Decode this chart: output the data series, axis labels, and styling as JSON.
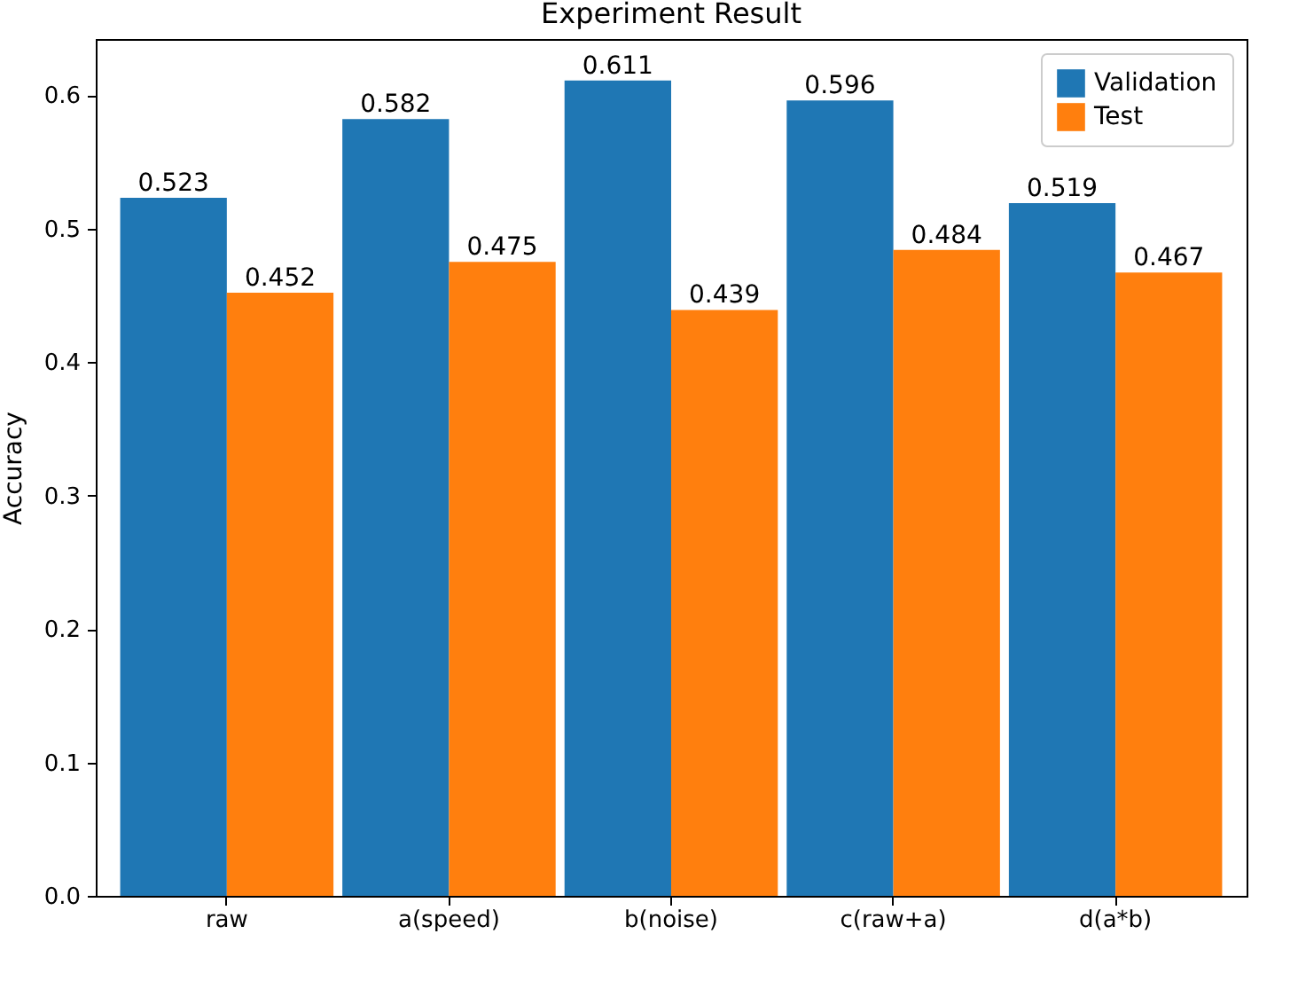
{
  "chart_data": {
    "type": "bar",
    "title": "Experiment Result",
    "ylabel": "Accuracy",
    "categories": [
      "raw",
      "a(speed)",
      "b(noise)",
      "c(raw+a)",
      "d(a*b)"
    ],
    "series": [
      {
        "name": "Validation",
        "color": "#1f77b4",
        "values": [
          0.523,
          0.582,
          0.611,
          0.596,
          0.519
        ]
      },
      {
        "name": "Test",
        "color": "#ff7f0e",
        "values": [
          0.452,
          0.475,
          0.439,
          0.484,
          0.467
        ]
      }
    ],
    "ylim": [
      0,
      0.642
    ],
    "yticks": [
      {
        "value": 0,
        "label": "0.0"
      },
      0.1,
      0.2,
      0.3,
      0.4,
      0.5,
      0.6
    ],
    "data_labels": true,
    "legend": "top right",
    "grid": false
  }
}
